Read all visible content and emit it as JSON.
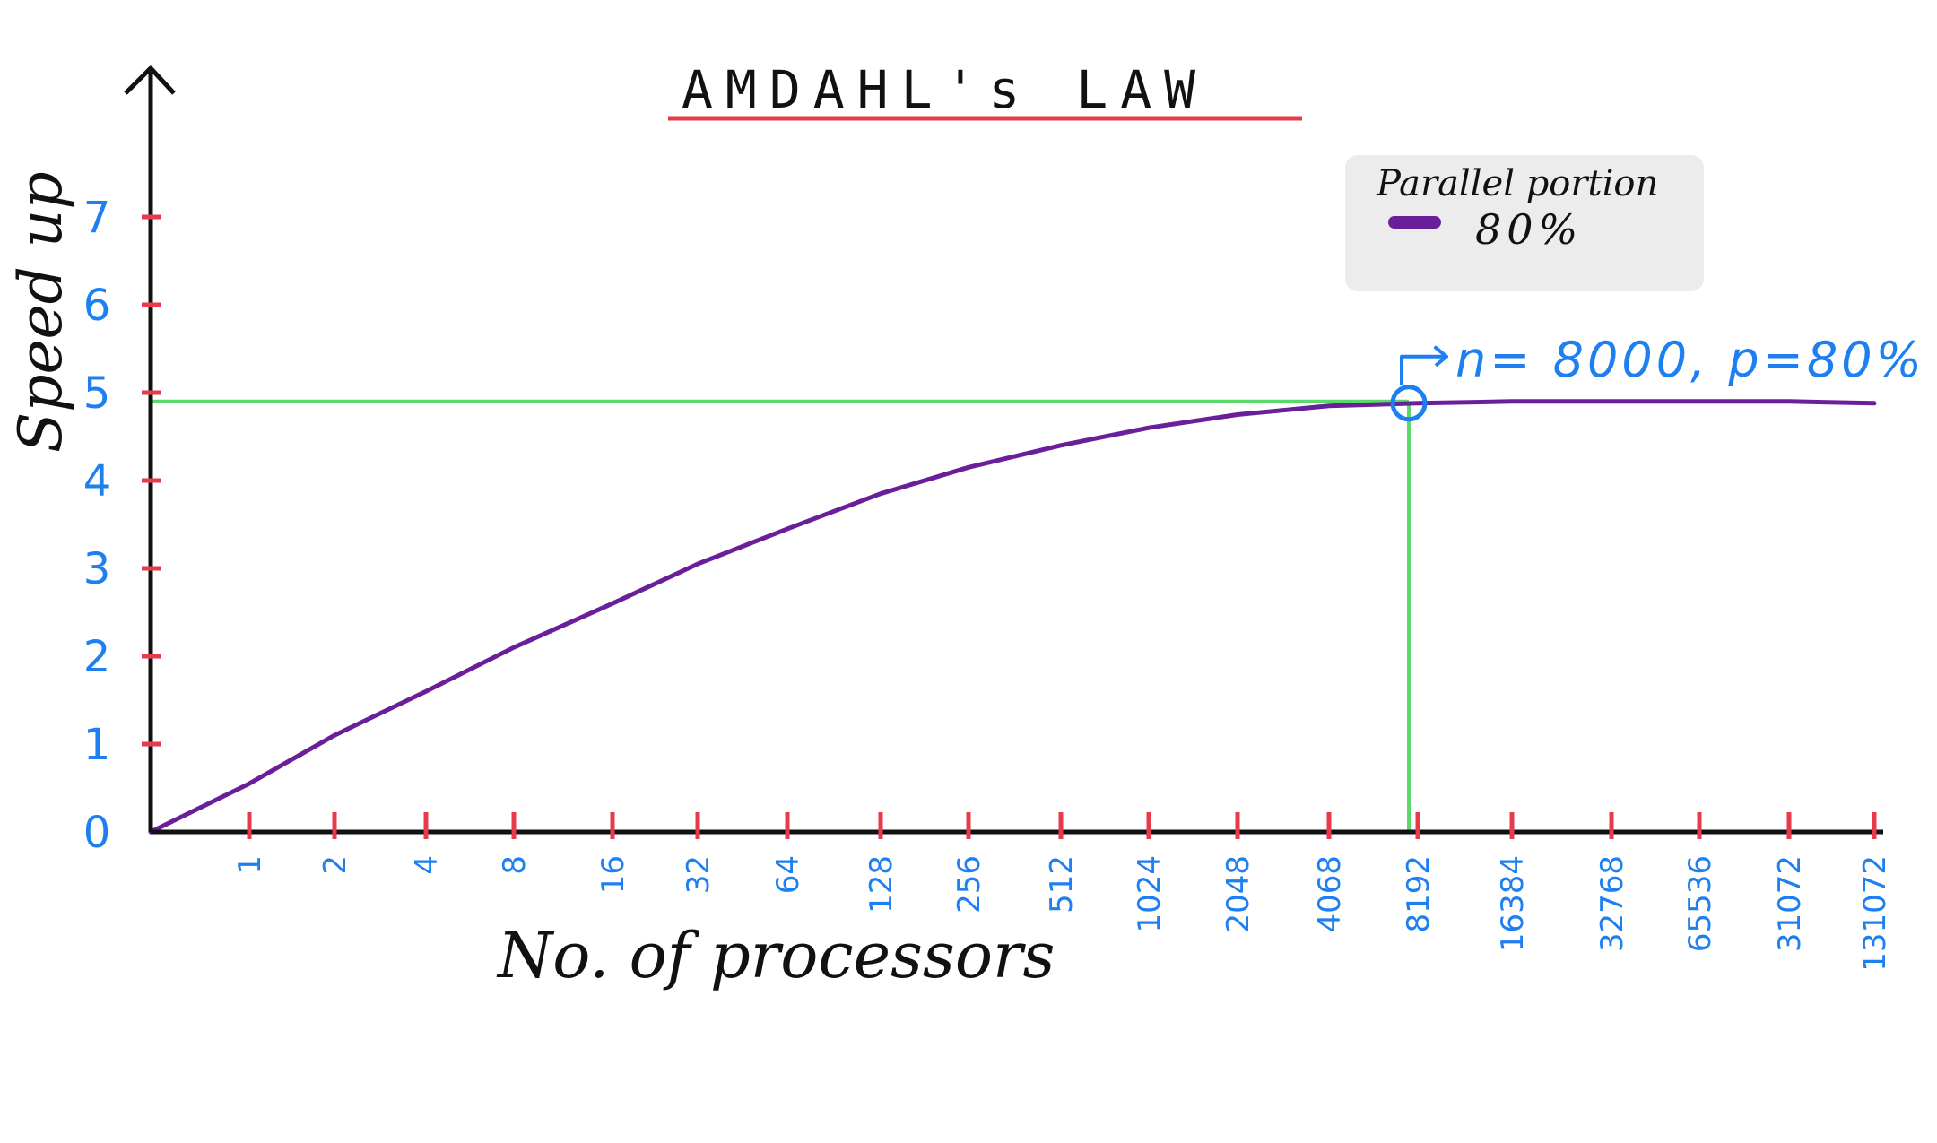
{
  "chart_data": {
    "type": "line",
    "title": "AMDAHL's LAW",
    "xlabel": "No. of processors",
    "ylabel": "Speed up",
    "categories": [
      "1",
      "2",
      "4",
      "8",
      "16",
      "32",
      "64",
      "128",
      "256",
      "512",
      "1024",
      "2048",
      "4068",
      "8192",
      "16384",
      "32768",
      "65536",
      "31072",
      "131072"
    ],
    "x_scale": "log2",
    "ylim": [
      0,
      7
    ],
    "yticks": [
      "0",
      "1",
      "2",
      "3",
      "4",
      "5",
      "6",
      "7"
    ],
    "grid": false,
    "legend": {
      "title": "Parallel portion",
      "placement": "top-right",
      "entries": [
        {
          "label": "80%",
          "color": "#6a1f9a"
        }
      ]
    },
    "series": [
      {
        "name": "80%",
        "color": "#6a1f9a",
        "x": [
          0,
          1,
          2,
          3,
          4,
          5,
          6,
          7,
          8,
          9,
          10,
          11,
          12,
          13,
          14,
          15,
          16,
          17,
          18
        ],
        "y": [
          0.55,
          1.1,
          1.6,
          2.1,
          2.6,
          3.05,
          3.45,
          3.85,
          4.15,
          4.4,
          4.6,
          4.75,
          4.85,
          4.88,
          4.9,
          4.9,
          4.9,
          4.9,
          4.88
        ]
      }
    ],
    "annotation": {
      "text": "n= 8000, p=80%",
      "x": 13,
      "y": 4.88
    },
    "reference_lines": {
      "horizontal_y": 4.9,
      "vertical_x": 13,
      "color": "#5ad86a"
    }
  },
  "colors": {
    "axis": "#111111",
    "tick_mark": "#e8394d",
    "tick_label": "#1e7ff0",
    "title_underline": "#e8394d",
    "legend_bg": "#ececec",
    "curve": "#6a1f9a",
    "guide": "#5ad86a",
    "annotation": "#1e7ff0"
  }
}
